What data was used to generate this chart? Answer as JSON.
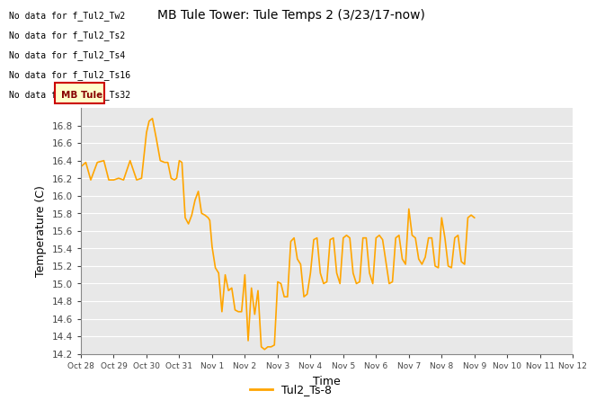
{
  "title": "MB Tule Tower: Tule Temps 2 (3/23/17-now)",
  "xlabel": "Time",
  "ylabel": "Temperature (C)",
  "line_color": "#FFA500",
  "line_label": "Tul2_Ts-8",
  "background_color": "#E8E8E8",
  "no_data_labels": [
    "No data for f_Tul2_Tw2",
    "No data for f_Tul2_Ts2",
    "No data for f_Tul2_Ts4",
    "No data for f_Tul2_Ts16",
    "No data for f_Tul2_Ts32"
  ],
  "tooltip_text": "MB Tule",
  "tooltip_bg": "#FFFFCC",
  "tooltip_border": "#CC0000",
  "x_tick_labels": [
    "Oct 28",
    "Oct 29",
    "Oct 30",
    "Oct 31",
    "Nov 1",
    "Nov 2",
    "Nov 3",
    "Nov 4",
    "Nov 5",
    "Nov 6",
    "Nov 7",
    "Nov 8",
    "Nov 9",
    "Nov 10",
    "Nov 11",
    "Nov 12"
  ],
  "ylim": [
    14.2,
    17.0
  ],
  "yticks": [
    14.2,
    14.4,
    14.6,
    14.8,
    15.0,
    15.2,
    15.4,
    15.6,
    15.8,
    16.0,
    16.2,
    16.4,
    16.6,
    16.8
  ],
  "x_data": [
    0.0,
    0.15,
    0.3,
    0.5,
    0.7,
    0.85,
    1.0,
    1.15,
    1.3,
    1.5,
    1.7,
    1.85,
    2.0,
    2.08,
    2.18,
    2.3,
    2.42,
    2.55,
    2.65,
    2.75,
    2.85,
    2.92,
    3.0,
    3.08,
    3.18,
    3.28,
    3.38,
    3.48,
    3.58,
    3.68,
    3.78,
    3.88,
    3.93,
    4.0,
    4.1,
    4.2,
    4.3,
    4.4,
    4.5,
    4.6,
    4.7,
    4.8,
    4.9,
    5.0,
    5.1,
    5.2,
    5.3,
    5.4,
    5.5,
    5.6,
    5.7,
    5.8,
    5.9,
    6.0,
    6.1,
    6.2,
    6.3,
    6.4,
    6.5,
    6.6,
    6.7,
    6.8,
    6.9,
    7.0,
    7.1,
    7.2,
    7.3,
    7.4,
    7.5,
    7.6,
    7.7,
    7.8,
    7.9,
    8.0,
    8.1,
    8.2,
    8.3,
    8.4,
    8.5,
    8.6,
    8.7,
    8.8,
    8.9,
    9.0,
    9.1,
    9.2,
    9.3,
    9.4,
    9.5,
    9.6,
    9.7,
    9.8,
    9.9,
    10.0,
    10.1,
    10.2,
    10.3,
    10.4,
    10.5,
    10.6,
    10.7,
    10.8,
    10.9,
    11.0,
    11.1,
    11.2,
    11.3,
    11.4,
    11.5,
    11.6,
    11.7,
    11.8,
    11.9,
    12.0
  ],
  "y_data": [
    16.33,
    16.38,
    16.18,
    16.38,
    16.4,
    16.18,
    16.18,
    16.2,
    16.18,
    16.4,
    16.18,
    16.2,
    16.72,
    16.85,
    16.88,
    16.65,
    16.4,
    16.38,
    16.38,
    16.2,
    16.18,
    16.2,
    16.4,
    16.38,
    15.75,
    15.68,
    15.78,
    15.95,
    16.05,
    15.8,
    15.78,
    15.75,
    15.72,
    15.42,
    15.18,
    15.12,
    14.68,
    15.1,
    14.92,
    14.95,
    14.7,
    14.68,
    14.68,
    15.1,
    14.35,
    14.95,
    14.65,
    14.92,
    14.28,
    14.25,
    14.28,
    14.28,
    14.3,
    15.02,
    15.0,
    14.85,
    14.85,
    15.48,
    15.52,
    15.28,
    15.22,
    14.85,
    14.88,
    15.12,
    15.5,
    15.52,
    15.12,
    15.0,
    15.02,
    15.5,
    15.52,
    15.12,
    15.0,
    15.52,
    15.55,
    15.52,
    15.12,
    15.0,
    15.02,
    15.52,
    15.52,
    15.12,
    15.0,
    15.52,
    15.55,
    15.5,
    15.25,
    15.0,
    15.02,
    15.52,
    15.55,
    15.28,
    15.22,
    15.85,
    15.55,
    15.52,
    15.28,
    15.22,
    15.3,
    15.52,
    15.52,
    15.2,
    15.18,
    15.75,
    15.52,
    15.2,
    15.18,
    15.52,
    15.55,
    15.25,
    15.22,
    15.75,
    15.78,
    15.75
  ]
}
